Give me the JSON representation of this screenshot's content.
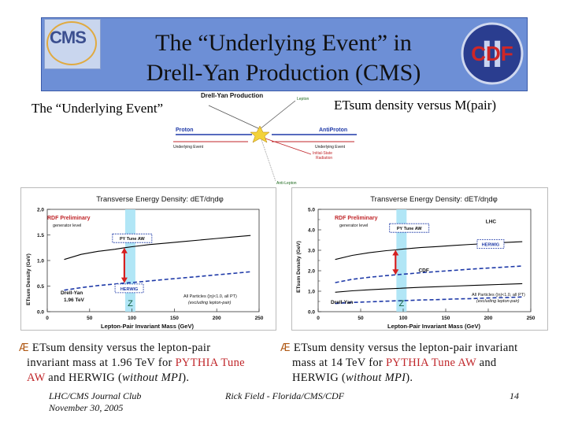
{
  "banner": {
    "title_line1": "The “Underlying Event” in",
    "title_line2": "Drell-Yan Production (CMS)",
    "cms_logo_text": "CMS",
    "cdf_logo_text": "CDF",
    "cdf_logo_numeral": "II"
  },
  "left_heading": "The “Underlying Event”",
  "right_heading": "ETsum density versus M(pair)",
  "diagram": {
    "top_label": "Drell-Yan Production",
    "lepton": "Lepton",
    "proton": "Proton",
    "antiproton": "AntiProton",
    "ue_left": "Underlying Event",
    "ue_right": "Underlying Event",
    "isr_line1": "Initial-State",
    "isr_line2": "Radiation",
    "antilepton": "Anti-Lepton"
  },
  "chart_data": [
    {
      "type": "line",
      "title": "Transverse Energy Density: dET/dηdφ",
      "xlabel": "Lepton-Pair Invariant Mass (GeV)",
      "ylabel": "ETsum Density (GeV)",
      "xlim": [
        0,
        250
      ],
      "ylim": [
        0.0,
        2.0
      ],
      "xticks": [
        "0",
        "50",
        "100",
        "150",
        "200",
        "250"
      ],
      "yticks": [
        "0.0",
        "0.5",
        "1.0",
        "1.5",
        "2.0"
      ],
      "preliminary_line1": "RDF Preliminary",
      "preliminary_line2": "generator level",
      "label_line1": "Drell-Yan",
      "label_line2": "1.96 TeV",
      "cuts_line1": "All Particles (|η|<1.0, all PT)",
      "cuts_line2": "(excluding lepton-pair)",
      "z_label": "Z",
      "z_band_x": [
        92,
        104
      ],
      "series": [
        {
          "name": "PY Tune AW",
          "style": "solid",
          "color": "#000000",
          "x": [
            20,
            40,
            60,
            80,
            91,
            100,
            120,
            140,
            160,
            180,
            200,
            220,
            240
          ],
          "y": [
            1.02,
            1.12,
            1.18,
            1.22,
            1.25,
            1.27,
            1.31,
            1.34,
            1.37,
            1.4,
            1.43,
            1.46,
            1.49
          ]
        },
        {
          "name": "HERWIG",
          "style": "dashed",
          "color": "#1f3aa8",
          "x": [
            20,
            40,
            60,
            80,
            91,
            100,
            120,
            140,
            160,
            180,
            200,
            220,
            240
          ],
          "y": [
            0.42,
            0.47,
            0.51,
            0.54,
            0.56,
            0.57,
            0.6,
            0.63,
            0.66,
            0.69,
            0.72,
            0.75,
            0.78
          ]
        }
      ]
    },
    {
      "type": "line",
      "title": "Transverse Energy Density: dET/dηdφ",
      "xlabel": "Lepton-Pair Invariant Mass (GeV)",
      "ylabel": "ETsum Density (GeV)",
      "xlim": [
        0,
        250
      ],
      "ylim": [
        0.0,
        5.0
      ],
      "xticks": [
        "0",
        "50",
        "100",
        "150",
        "200",
        "250"
      ],
      "yticks": [
        "0.0",
        "1.0",
        "2.0",
        "3.0",
        "4.0",
        "5.0"
      ],
      "yticks_minor": [
        "0.5",
        "1.5",
        "2.5",
        "3.5",
        "4.5"
      ],
      "preliminary_line1": "RDF Preliminary",
      "preliminary_line2": "generator level",
      "label_line1": "Drell-Yan",
      "cuts_line1": "All Particles (|η|<1.0, all PT)",
      "cuts_line2": "(excluding lepton-pair)",
      "z_label": "Z",
      "z_band_x": [
        92,
        104
      ],
      "series": [
        {
          "name": "PY Tune AW",
          "style": "solid",
          "color": "#000000",
          "x": [
            20,
            40,
            60,
            80,
            91,
            100,
            120,
            140,
            160,
            180,
            200,
            220,
            240
          ],
          "y": [
            2.55,
            2.75,
            2.88,
            2.98,
            3.02,
            3.06,
            3.13,
            3.18,
            3.24,
            3.29,
            3.33,
            3.38,
            3.42
          ]
        },
        {
          "name": "HERWIG",
          "style": "dashed",
          "color": "#1f3aa8",
          "x": [
            20,
            40,
            60,
            80,
            91,
            100,
            120,
            140,
            160,
            180,
            200,
            220,
            240
          ],
          "y": [
            1.42,
            1.58,
            1.68,
            1.76,
            1.8,
            1.83,
            1.9,
            1.96,
            2.02,
            2.08,
            2.13,
            2.18,
            2.23
          ]
        },
        {
          "name": "CDF",
          "style": "solid",
          "color": "#000000",
          "x": [
            20,
            40,
            60,
            80,
            91,
            100,
            120,
            140,
            160,
            180,
            200,
            220,
            240
          ],
          "y": [
            0.95,
            1.02,
            1.07,
            1.11,
            1.13,
            1.15,
            1.19,
            1.22,
            1.25,
            1.28,
            1.31,
            1.34,
            1.37
          ]
        },
        {
          "name": "CDF-dashed",
          "style": "dashed",
          "color": "#1f3aa8",
          "x": [
            20,
            40,
            60,
            80,
            91,
            100,
            120,
            140,
            160,
            180,
            200,
            220,
            240
          ],
          "y": [
            0.4,
            0.45,
            0.48,
            0.51,
            0.53,
            0.54,
            0.57,
            0.59,
            0.62,
            0.64,
            0.67,
            0.69,
            0.72
          ]
        }
      ],
      "labels": {
        "lhc": "LHC",
        "herwig": "HERWIG",
        "cdf": "CDF",
        "py": "PY Tune AW"
      }
    }
  ],
  "bullets": {
    "glyph": "Æ",
    "left": {
      "line1": "ETsum density versus the lepton-pair",
      "line2_a": "invariant mass at 1.96 TeV for ",
      "line2_red": "PYTHIA Tune",
      "line3_red": "AW",
      "line3_b": " and HERWIG (",
      "line3_i": "without MPI",
      "line3_c": ")."
    },
    "right": {
      "line1": "ETsum density versus the lepton-pair invariant",
      "line2_a": "mass at 14 TeV for ",
      "line2_red": "PYTHIA Tune AW",
      "line2_b": " and",
      "line3_a": "HERWIG (",
      "line3_i": "without MPI",
      "line3_c": ")."
    }
  },
  "footer": {
    "left_line1": "LHC/CMS Journal Club",
    "left_line2": "November 30, 2005",
    "center": "Rick Field - Florida/CMS/CDF",
    "page": "14"
  }
}
